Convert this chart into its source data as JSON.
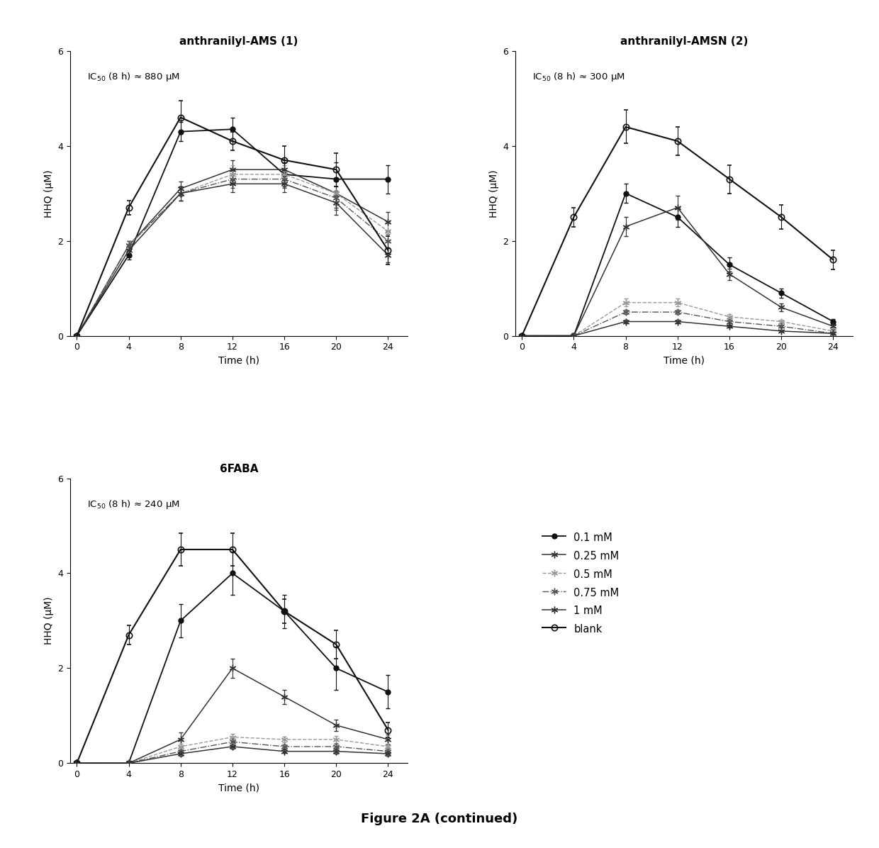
{
  "time_points": [
    0,
    4,
    8,
    12,
    16,
    20,
    24
  ],
  "titles": [
    "anthranilyl-AMS (1)",
    "anthranilyl-AMSN (2)",
    "6FABA"
  ],
  "ic50_labels": [
    "IC$_{50}$ (8 h) ≈ 880 μM",
    "IC$_{50}$ (8 h) ≈ 300 μM",
    "IC$_{50}$ (8 h) ≈ 240 μM"
  ],
  "xlabel": "Time (h)",
  "ylabel": "HHQ (μM)",
  "ylim": [
    0,
    6
  ],
  "yticks": [
    0,
    2,
    4,
    6
  ],
  "xticks": [
    0,
    4,
    8,
    12,
    16,
    20,
    24
  ],
  "figure_caption": "Figure 2A (continued)",
  "legend_labels": [
    "0.1 mM",
    "0.25 mM",
    "0.5 mM",
    "0.75 mM",
    "1 mM",
    "blank"
  ],
  "series": {
    "AMS": {
      "blank": {
        "y": [
          0,
          2.7,
          4.6,
          4.1,
          3.7,
          3.5,
          1.8
        ],
        "yerr": [
          0,
          0.15,
          0.35,
          0.2,
          0.3,
          0.35,
          0.3
        ]
      },
      "conc_0p1": {
        "y": [
          0,
          1.7,
          4.3,
          4.35,
          3.4,
          3.3,
          3.3
        ],
        "yerr": [
          0,
          0.1,
          0.2,
          0.25,
          0.25,
          0.35,
          0.3
        ]
      },
      "conc_0p25": {
        "y": [
          0,
          1.9,
          3.1,
          3.5,
          3.5,
          3.0,
          2.4
        ],
        "yerr": [
          0,
          0.1,
          0.15,
          0.2,
          0.2,
          0.3,
          0.2
        ]
      },
      "conc_0p5": {
        "y": [
          0,
          1.9,
          3.0,
          3.4,
          3.4,
          3.0,
          2.2
        ],
        "yerr": [
          0,
          0.1,
          0.15,
          0.2,
          0.2,
          0.25,
          0.2
        ]
      },
      "conc_0p75": {
        "y": [
          0,
          1.9,
          3.0,
          3.3,
          3.3,
          2.9,
          2.0
        ],
        "yerr": [
          0,
          0.1,
          0.15,
          0.18,
          0.18,
          0.25,
          0.15
        ]
      },
      "conc_1": {
        "y": [
          0,
          1.8,
          3.0,
          3.2,
          3.2,
          2.8,
          1.7
        ],
        "yerr": [
          0,
          0.1,
          0.15,
          0.18,
          0.18,
          0.25,
          0.15
        ]
      }
    },
    "AMSN": {
      "blank": {
        "y": [
          0,
          2.5,
          4.4,
          4.1,
          3.3,
          2.5,
          1.6
        ],
        "yerr": [
          0,
          0.2,
          0.35,
          0.3,
          0.3,
          0.25,
          0.2
        ]
      },
      "conc_0p1": {
        "y": [
          0,
          0.0,
          3.0,
          2.5,
          1.5,
          0.9,
          0.3
        ],
        "yerr": [
          0,
          0.05,
          0.2,
          0.2,
          0.15,
          0.1,
          0.05
        ]
      },
      "conc_0p25": {
        "y": [
          0,
          0.0,
          2.3,
          2.7,
          1.3,
          0.6,
          0.2
        ],
        "yerr": [
          0,
          0.05,
          0.2,
          0.25,
          0.12,
          0.08,
          0.05
        ]
      },
      "conc_0p5": {
        "y": [
          0,
          0.0,
          0.7,
          0.7,
          0.4,
          0.3,
          0.1
        ],
        "yerr": [
          0,
          0.03,
          0.08,
          0.08,
          0.05,
          0.04,
          0.03
        ]
      },
      "conc_0p75": {
        "y": [
          0,
          0.0,
          0.5,
          0.5,
          0.3,
          0.2,
          0.05
        ],
        "yerr": [
          0,
          0.02,
          0.05,
          0.05,
          0.04,
          0.03,
          0.02
        ]
      },
      "conc_1": {
        "y": [
          0,
          0.0,
          0.3,
          0.3,
          0.2,
          0.1,
          0.05
        ],
        "yerr": [
          0,
          0.02,
          0.04,
          0.04,
          0.03,
          0.02,
          0.02
        ]
      }
    },
    "6FABA": {
      "blank": {
        "y": [
          0,
          2.7,
          4.5,
          4.5,
          3.2,
          2.5,
          0.7
        ],
        "yerr": [
          0,
          0.2,
          0.35,
          0.35,
          0.25,
          0.3,
          0.15
        ]
      },
      "conc_0p1": {
        "y": [
          0,
          0.0,
          3.0,
          4.0,
          3.2,
          2.0,
          1.5
        ],
        "yerr": [
          0,
          0.05,
          0.35,
          0.45,
          0.35,
          0.45,
          0.35
        ]
      },
      "conc_0p25": {
        "y": [
          0,
          0.0,
          0.5,
          2.0,
          1.4,
          0.8,
          0.5
        ],
        "yerr": [
          0,
          0.03,
          0.15,
          0.2,
          0.15,
          0.12,
          0.1
        ]
      },
      "conc_0p5": {
        "y": [
          0,
          0.0,
          0.35,
          0.55,
          0.5,
          0.5,
          0.35
        ],
        "yerr": [
          0,
          0.02,
          0.06,
          0.07,
          0.06,
          0.08,
          0.06
        ]
      },
      "conc_0p75": {
        "y": [
          0,
          0.0,
          0.25,
          0.45,
          0.35,
          0.35,
          0.25
        ],
        "yerr": [
          0,
          0.02,
          0.04,
          0.06,
          0.05,
          0.06,
          0.05
        ]
      },
      "conc_1": {
        "y": [
          0,
          0.0,
          0.2,
          0.35,
          0.25,
          0.25,
          0.2
        ],
        "yerr": [
          0,
          0.02,
          0.04,
          0.05,
          0.04,
          0.05,
          0.04
        ]
      }
    }
  },
  "series_order": [
    "conc_0p1",
    "conc_0p25",
    "conc_0p5",
    "conc_0p75",
    "conc_1",
    "blank"
  ]
}
